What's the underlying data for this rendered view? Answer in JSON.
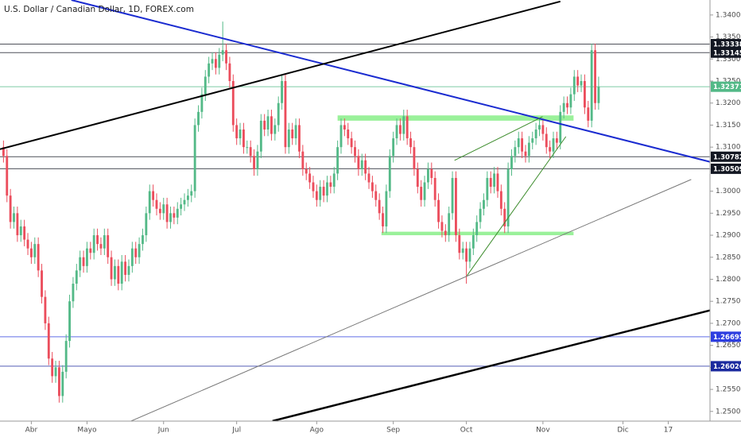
{
  "chart_data": {
    "type": "candlestick",
    "title": "U.S. Dollar / Canadian Dollar, 1D, FOREX.com",
    "up_color": "#53b987",
    "down_color": "#eb4d5c",
    "grid": false,
    "xlim": [
      -1,
      203
    ],
    "xticks": [
      {
        "value": 8,
        "label": "Abr"
      },
      {
        "value": 24,
        "label": "Mayo"
      },
      {
        "value": 46,
        "label": "Jun"
      },
      {
        "value": 67,
        "label": "Jul"
      },
      {
        "value": 90,
        "label": "Ago"
      },
      {
        "value": 112,
        "label": "Sep"
      },
      {
        "value": 133,
        "label": "Oct"
      },
      {
        "value": 155,
        "label": "Nov"
      },
      {
        "value": 178,
        "label": "Dic"
      },
      {
        "value": 191,
        "label": "17"
      }
    ],
    "ylim": [
      1.2478,
      1.3434
    ],
    "yticks": [
      {
        "value": 1.25,
        "label": "1.25000"
      },
      {
        "value": 1.255,
        "label": "1.25500"
      },
      {
        "value": 1.26,
        "label": "1.26000"
      },
      {
        "value": 1.265,
        "label": "1.26500"
      },
      {
        "value": 1.27,
        "label": "1.27000"
      },
      {
        "value": 1.275,
        "label": "1.27500"
      },
      {
        "value": 1.28,
        "label": "1.28000"
      },
      {
        "value": 1.285,
        "label": "1.28500"
      },
      {
        "value": 1.29,
        "label": "1.29000"
      },
      {
        "value": 1.295,
        "label": "1.29500"
      },
      {
        "value": 1.3,
        "label": "1.30000"
      },
      {
        "value": 1.305,
        "label": "1.30500"
      },
      {
        "value": 1.31,
        "label": "1.31000"
      },
      {
        "value": 1.315,
        "label": "1.31500"
      },
      {
        "value": 1.32,
        "label": "1.32000"
      },
      {
        "value": 1.325,
        "label": "1.32500"
      },
      {
        "value": 1.33,
        "label": "1.33000"
      },
      {
        "value": 1.335,
        "label": "1.33500"
      },
      {
        "value": 1.34,
        "label": "1.34000"
      }
    ],
    "open": [
      1.31,
      1.308,
      1.299,
      1.293,
      1.295,
      1.29,
      1.292,
      1.289,
      1.287,
      1.285,
      1.288,
      1.282,
      1.276,
      1.27,
      1.262,
      1.258,
      1.26,
      1.2535,
      1.259,
      1.266,
      1.275,
      1.279,
      1.282,
      1.285,
      1.283,
      1.287,
      1.286,
      1.29,
      1.288,
      1.287,
      1.29,
      1.285,
      1.28,
      1.283,
      1.279,
      1.284,
      1.281,
      1.283,
      1.287,
      1.285,
      1.288,
      1.29,
      1.295,
      1.3,
      1.298,
      1.296,
      1.295,
      1.297,
      1.293,
      1.295,
      1.294,
      1.296,
      1.297,
      1.298,
      1.299,
      1.3,
      1.315,
      1.318,
      1.322,
      1.326,
      1.329,
      1.33,
      1.328,
      1.331,
      1.332,
      1.329,
      1.325,
      1.315,
      1.312,
      1.314,
      1.31,
      1.31,
      1.308,
      1.305,
      1.309,
      1.316,
      1.314,
      1.317,
      1.313,
      1.315,
      1.32,
      1.325,
      1.31,
      1.314,
      1.312,
      1.315,
      1.309,
      1.305,
      1.304,
      1.302,
      1.3,
      1.298,
      1.301,
      1.299,
      1.302,
      1.301,
      1.304,
      1.31,
      1.315,
      1.314,
      1.312,
      1.31,
      1.308,
      1.305,
      1.307,
      1.304,
      1.302,
      1.3,
      1.298,
      1.295,
      1.292,
      1.3,
      1.308,
      1.312,
      1.315,
      1.313,
      1.317,
      1.312,
      1.31,
      1.305,
      1.301,
      1.298,
      1.302,
      1.305,
      1.303,
      1.298,
      1.293,
      1.291,
      1.29,
      1.295,
      1.303,
      1.29,
      1.286,
      1.287,
      1.284,
      1.287,
      1.29,
      1.293,
      1.296,
      1.298,
      1.303,
      1.301,
      1.304,
      1.3,
      1.296,
      1.292,
      1.305,
      1.308,
      1.31,
      1.312,
      1.309,
      1.308,
      1.311,
      1.312,
      1.314,
      1.315,
      1.313,
      1.31,
      1.309,
      1.312,
      1.311,
      1.318,
      1.32,
      1.319,
      1.322,
      1.326,
      1.324,
      1.325,
      1.319,
      1.316,
      1.332,
      1.32
    ],
    "high": [
      1.3115,
      1.3095,
      1.3005,
      1.2965,
      1.2965,
      1.2935,
      1.2935,
      1.2905,
      1.2885,
      1.2895,
      1.2895,
      1.2835,
      1.2775,
      1.2715,
      1.2635,
      1.2615,
      1.2615,
      1.2605,
      1.2675,
      1.2765,
      1.2805,
      1.2835,
      1.2865,
      1.2865,
      1.2885,
      1.2885,
      1.2915,
      1.2915,
      1.2895,
      1.2915,
      1.2915,
      1.2865,
      1.2845,
      1.2845,
      1.2855,
      1.2855,
      1.2845,
      1.2885,
      1.2885,
      1.2895,
      1.2915,
      1.2965,
      1.3015,
      1.3015,
      1.2995,
      1.2975,
      1.2985,
      1.2985,
      1.2965,
      1.2965,
      1.2975,
      1.2985,
      1.2995,
      1.3005,
      1.3015,
      1.3165,
      1.3195,
      1.3235,
      1.3275,
      1.3305,
      1.3315,
      1.3315,
      1.3325,
      1.3385,
      1.3335,
      1.3305,
      1.3265,
      1.3165,
      1.3155,
      1.3155,
      1.3115,
      1.3115,
      1.3095,
      1.3105,
      1.3175,
      1.3175,
      1.3185,
      1.3185,
      1.3165,
      1.3215,
      1.3265,
      1.3265,
      1.3155,
      1.3155,
      1.3165,
      1.3165,
      1.3105,
      1.3065,
      1.3055,
      1.3035,
      1.3015,
      1.3025,
      1.3025,
      1.3035,
      1.3035,
      1.3055,
      1.3115,
      1.3165,
      1.3165,
      1.3155,
      1.3135,
      1.3115,
      1.3095,
      1.3085,
      1.3085,
      1.3055,
      1.3035,
      1.3015,
      1.2995,
      1.2965,
      1.3015,
      1.3095,
      1.3135,
      1.3165,
      1.3165,
      1.3185,
      1.3185,
      1.3135,
      1.3115,
      1.3065,
      1.3025,
      1.3035,
      1.3065,
      1.3065,
      1.3045,
      1.2995,
      1.2945,
      1.2925,
      1.2965,
      1.3045,
      1.3045,
      1.2915,
      1.2885,
      1.2885,
      1.2885,
      1.2915,
      1.2945,
      1.2975,
      1.2995,
      1.3045,
      1.3045,
      1.3055,
      1.3055,
      1.3015,
      1.2975,
      1.3065,
      1.3095,
      1.3115,
      1.3135,
      1.3135,
      1.3105,
      1.3125,
      1.3135,
      1.3155,
      1.3165,
      1.3165,
      1.3145,
      1.3115,
      1.3135,
      1.3135,
      1.3195,
      1.3215,
      1.3215,
      1.3235,
      1.3275,
      1.3275,
      1.3265,
      1.3265,
      1.3205,
      1.3335,
      1.3335,
      1.326
    ],
    "low": [
      1.3065,
      1.2975,
      1.2915,
      1.2915,
      1.2885,
      1.2885,
      1.2875,
      1.2855,
      1.2835,
      1.2835,
      1.2805,
      1.2745,
      1.2685,
      1.2605,
      1.2565,
      1.2565,
      1.252,
      1.252,
      1.2575,
      1.2645,
      1.2735,
      1.2775,
      1.2805,
      1.2815,
      1.2815,
      1.2845,
      1.2845,
      1.2865,
      1.2855,
      1.2855,
      1.2835,
      1.2785,
      1.2785,
      1.2775,
      1.2775,
      1.2795,
      1.2795,
      1.2815,
      1.2835,
      1.2835,
      1.2865,
      1.2885,
      1.2935,
      1.2965,
      1.2945,
      1.2935,
      1.2935,
      1.2915,
      1.2915,
      1.2925,
      1.2925,
      1.2945,
      1.2955,
      1.2965,
      1.2975,
      1.2985,
      1.3135,
      1.3165,
      1.3205,
      1.3245,
      1.3275,
      1.3265,
      1.3265,
      1.3295,
      1.3275,
      1.3235,
      1.3135,
      1.3105,
      1.3105,
      1.3085,
      1.3085,
      1.3065,
      1.3035,
      1.3035,
      1.3075,
      1.3125,
      1.3125,
      1.3115,
      1.3115,
      1.3135,
      1.3185,
      1.3085,
      1.3085,
      1.3105,
      1.3105,
      1.3075,
      1.3035,
      1.3025,
      1.3005,
      1.2985,
      1.2965,
      1.2965,
      1.2975,
      1.2975,
      1.2995,
      1.2995,
      1.3025,
      1.3085,
      1.3125,
      1.3105,
      1.3085,
      1.3065,
      1.3035,
      1.3035,
      1.3025,
      1.3005,
      1.2985,
      1.2965,
      1.2935,
      1.2905,
      1.2905,
      1.2985,
      1.3065,
      1.3105,
      1.3115,
      1.3115,
      1.3105,
      1.3085,
      1.3035,
      1.2995,
      1.2965,
      1.2965,
      1.3005,
      1.3015,
      1.2965,
      1.2915,
      1.2895,
      1.2885,
      1.2885,
      1.2935,
      1.2885,
      1.2845,
      1.2845,
      1.279,
      1.2825,
      1.2855,
      1.2885,
      1.2915,
      1.2945,
      1.2965,
      1.2995,
      1.2995,
      1.2985,
      1.2945,
      1.2905,
      1.2905,
      1.3035,
      1.3065,
      1.3085,
      1.3075,
      1.3065,
      1.3065,
      1.3095,
      1.3105,
      1.3125,
      1.3115,
      1.3085,
      1.3075,
      1.3075,
      1.3095,
      1.3095,
      1.3165,
      1.3175,
      1.3175,
      1.3205,
      1.3225,
      1.3225,
      1.3175,
      1.3145,
      1.3145,
      1.3185,
      1.3185
    ],
    "close": [
      1.308,
      1.299,
      1.293,
      1.295,
      1.29,
      1.292,
      1.289,
      1.287,
      1.285,
      1.288,
      1.282,
      1.276,
      1.27,
      1.262,
      1.258,
      1.26,
      1.2535,
      1.259,
      1.266,
      1.275,
      1.279,
      1.282,
      1.285,
      1.283,
      1.287,
      1.286,
      1.29,
      1.288,
      1.287,
      1.29,
      1.285,
      1.28,
      1.283,
      1.279,
      1.284,
      1.281,
      1.283,
      1.287,
      1.285,
      1.288,
      1.29,
      1.295,
      1.3,
      1.298,
      1.296,
      1.295,
      1.297,
      1.293,
      1.295,
      1.294,
      1.296,
      1.297,
      1.298,
      1.299,
      1.3,
      1.315,
      1.318,
      1.322,
      1.326,
      1.329,
      1.33,
      1.328,
      1.331,
      1.332,
      1.329,
      1.325,
      1.315,
      1.312,
      1.314,
      1.31,
      1.31,
      1.308,
      1.305,
      1.309,
      1.316,
      1.314,
      1.317,
      1.313,
      1.315,
      1.32,
      1.325,
      1.31,
      1.314,
      1.312,
      1.315,
      1.309,
      1.305,
      1.304,
      1.302,
      1.3,
      1.298,
      1.301,
      1.299,
      1.302,
      1.301,
      1.304,
      1.31,
      1.315,
      1.314,
      1.312,
      1.31,
      1.308,
      1.305,
      1.307,
      1.304,
      1.302,
      1.3,
      1.298,
      1.295,
      1.292,
      1.3,
      1.308,
      1.312,
      1.315,
      1.313,
      1.317,
      1.312,
      1.31,
      1.305,
      1.301,
      1.298,
      1.302,
      1.305,
      1.303,
      1.298,
      1.293,
      1.291,
      1.29,
      1.295,
      1.303,
      1.29,
      1.286,
      1.287,
      1.284,
      1.287,
      1.29,
      1.293,
      1.296,
      1.298,
      1.303,
      1.301,
      1.304,
      1.3,
      1.296,
      1.292,
      1.305,
      1.308,
      1.31,
      1.312,
      1.309,
      1.308,
      1.311,
      1.312,
      1.314,
      1.315,
      1.313,
      1.31,
      1.309,
      1.312,
      1.311,
      1.318,
      1.32,
      1.319,
      1.322,
      1.326,
      1.324,
      1.325,
      1.319,
      1.316,
      1.332,
      1.32,
      1.3237
    ],
    "hlines": [
      {
        "value": 1.33338,
        "color": "#131722"
      },
      {
        "value": 1.33145,
        "color": "#131722"
      },
      {
        "value": 1.32371,
        "color": "#53b987"
      },
      {
        "value": 1.30782,
        "color": "#131722"
      },
      {
        "value": 1.30509,
        "color": "#131722"
      },
      {
        "value": 1.26695,
        "color": "#2d3ee0"
      },
      {
        "value": 1.26026,
        "color": "#1b2a9e"
      }
    ],
    "trendlines": [
      {
        "points": [
          [
            19.5,
            1.3434
          ],
          [
            211.8,
            1.3049
          ]
        ],
        "color": "#1a2bd0",
        "width": 2
      },
      {
        "points": [
          [
            -1,
            1.30952
          ],
          [
            160,
            1.34307
          ]
        ],
        "color": "#000000",
        "width": 2
      },
      {
        "points": [
          [
            77.3,
            1.24783
          ],
          [
            211.8,
            1.2747
          ]
        ],
        "color": "#000000",
        "width": 2.5
      },
      {
        "points": [
          [
            36.7,
            1.24783
          ],
          [
            197.6,
            1.30266
          ]
        ],
        "color": "#777777",
        "width": 1
      },
      {
        "points": [
          [
            129.6,
            1.30699
          ],
          [
            154.9,
            1.31691
          ]
        ],
        "color": "#3c8c2c",
        "width": 1
      },
      {
        "points": [
          [
            133.2,
            1.28084
          ],
          [
            161.6,
            1.3124
          ]
        ],
        "color": "#3c8c2c",
        "width": 1
      }
    ],
    "zones": [
      {
        "x": [
          96.0,
          163.8
        ],
        "y": [
          1.316,
          1.3172
        ],
        "color": "#8ff08f"
      },
      {
        "x": [
          108.6,
          163.8
        ],
        "y": [
          1.29,
          1.2908
        ],
        "color": "#8ff08f"
      }
    ]
  }
}
